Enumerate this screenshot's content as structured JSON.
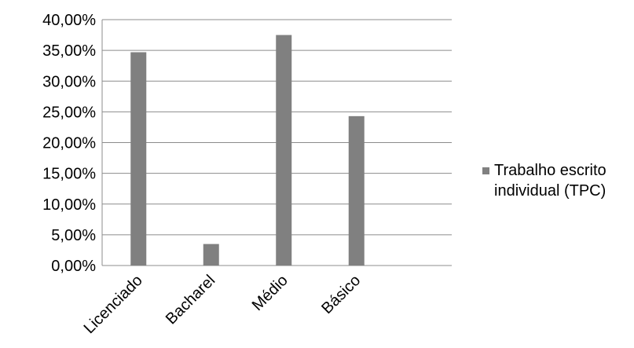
{
  "chart_data": {
    "type": "bar",
    "categories": [
      "Licenciado",
      "Bacharel",
      "Médio",
      "Básico"
    ],
    "series": [
      {
        "name": "Trabalho escrito individual (TPC)",
        "values": [
          34.7,
          3.5,
          37.5,
          24.3
        ],
        "color": "#808080"
      }
    ],
    "ylim": [
      0,
      40
    ],
    "yticks": [
      "0,00%",
      "5,00%",
      "10,00%",
      "15,00%",
      "20,00%",
      "25,00%",
      "30,00%",
      "35,00%",
      "40,00%"
    ],
    "grid": true,
    "legend_position": "right",
    "title": "",
    "xlabel": "",
    "ylabel": ""
  }
}
